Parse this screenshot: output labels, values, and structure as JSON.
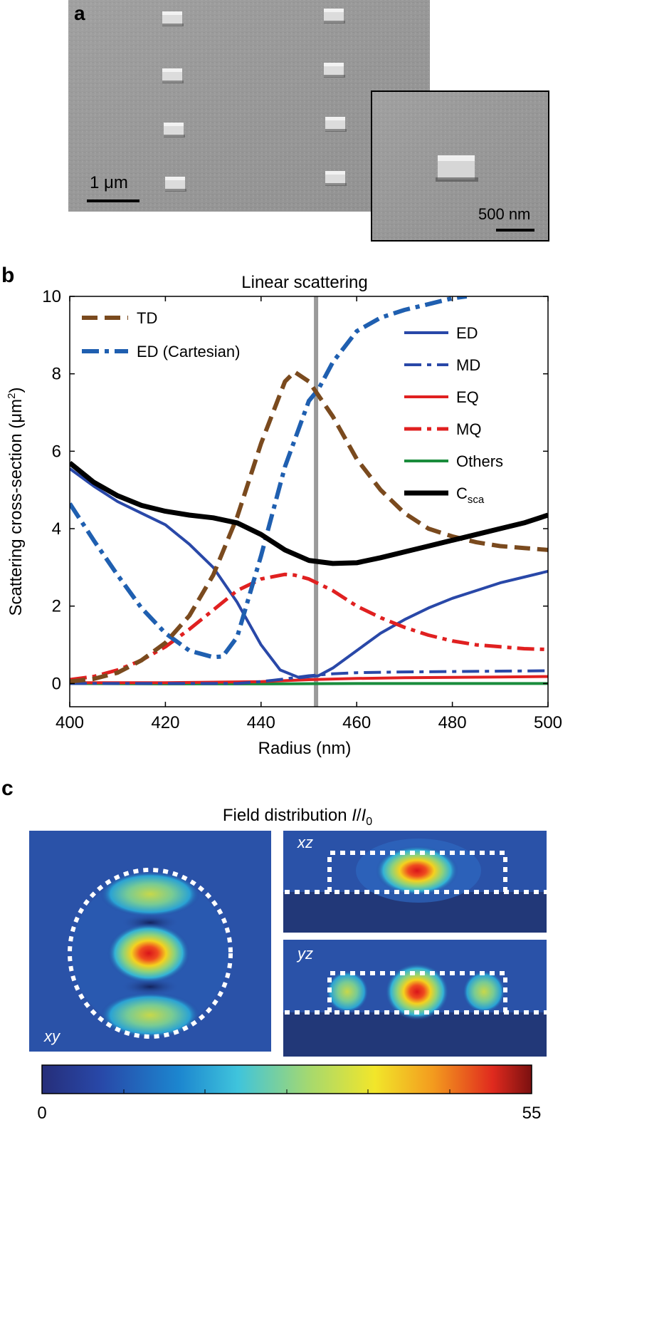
{
  "panels": {
    "a": {
      "label": "a",
      "scale_bar_main": "1 μm",
      "scale_bar_inset": "500 nm"
    },
    "b": {
      "label": "b"
    },
    "c": {
      "label": "c",
      "title_prefix": "Field distribution ",
      "title_I": "I",
      "title_slash": "/",
      "title_I0": "I",
      "title_I0_sub": "0",
      "map_labels": {
        "xy": "xy",
        "xz": "xz",
        "yz": "yz"
      },
      "colorbar": {
        "min": "0",
        "max": "55"
      }
    }
  },
  "chart_data": {
    "type": "line",
    "title": "Linear scattering",
    "xlabel": "Radius (nm)",
    "ylabel_main": "Scattering cross-section (μm",
    "ylabel_sup": "2",
    "ylabel_close": ")",
    "xlim": [
      400,
      500
    ],
    "ylim": [
      -0.6,
      10
    ],
    "xticks": [
      400,
      420,
      440,
      460,
      480,
      500
    ],
    "yticks": [
      0,
      2,
      4,
      6,
      8,
      10
    ],
    "vertical_marker_x": 451.5,
    "legend_left": [
      {
        "key": "TD",
        "label": "TD"
      },
      {
        "key": "EDC",
        "label": "ED (Cartesian)"
      }
    ],
    "legend_right": [
      {
        "key": "ED",
        "label": "ED"
      },
      {
        "key": "MD",
        "label": "MD"
      },
      {
        "key": "EQ",
        "label": "EQ"
      },
      {
        "key": "MQ",
        "label": "MQ"
      },
      {
        "key": "Others",
        "label": "Others"
      }
    ],
    "legend_csca": {
      "key": "Csca",
      "main": "C",
      "sub": "sca"
    },
    "series": [
      {
        "key": "TD",
        "name": "TD",
        "color": "#7a4a1e",
        "style": "dash",
        "width": 6,
        "x": [
          400,
          405,
          410,
          415,
          420,
          425,
          430,
          435,
          440,
          445,
          447,
          450,
          455,
          460,
          465,
          470,
          475,
          480,
          485,
          490,
          495,
          500
        ],
        "y": [
          0.05,
          0.12,
          0.28,
          0.6,
          1.05,
          1.75,
          2.8,
          4.3,
          6.2,
          7.8,
          8.05,
          7.8,
          6.9,
          5.8,
          5.0,
          4.4,
          4.0,
          3.8,
          3.65,
          3.55,
          3.5,
          3.45
        ]
      },
      {
        "key": "EDC",
        "name": "ED (Cartesian)",
        "color": "#1f5fb0",
        "style": "dashdot",
        "width": 6,
        "x": [
          400,
          405,
          410,
          415,
          420,
          425,
          430,
          432,
          435,
          440,
          445,
          450,
          452,
          455,
          460,
          465,
          470,
          475,
          480,
          483
        ],
        "y": [
          4.65,
          3.7,
          2.8,
          1.95,
          1.3,
          0.85,
          0.68,
          0.7,
          1.2,
          3.3,
          5.6,
          7.3,
          7.6,
          8.3,
          9.1,
          9.45,
          9.65,
          9.8,
          9.95,
          10.0
        ]
      },
      {
        "key": "ED",
        "name": "ED",
        "color": "#2948a8",
        "style": "solid",
        "width": 4,
        "x": [
          400,
          405,
          410,
          415,
          420,
          425,
          430,
          435,
          440,
          444,
          448,
          452,
          455,
          460,
          465,
          470,
          475,
          480,
          485,
          490,
          495,
          500
        ],
        "y": [
          5.55,
          5.1,
          4.7,
          4.4,
          4.1,
          3.6,
          3.0,
          2.1,
          1.0,
          0.35,
          0.15,
          0.2,
          0.4,
          0.85,
          1.3,
          1.65,
          1.95,
          2.2,
          2.4,
          2.6,
          2.75,
          2.9
        ]
      },
      {
        "key": "MD",
        "name": "MD",
        "color": "#2948a8",
        "style": "dashdot",
        "width": 4,
        "x": [
          400,
          420,
          435,
          440,
          445,
          450,
          455,
          460,
          470,
          480,
          490,
          500
        ],
        "y": [
          0.0,
          0.0,
          0.0,
          0.05,
          0.12,
          0.2,
          0.25,
          0.28,
          0.3,
          0.31,
          0.32,
          0.33
        ]
      },
      {
        "key": "EQ",
        "name": "EQ",
        "color": "#e02020",
        "style": "solid",
        "width": 4,
        "x": [
          400,
          420,
          440,
          450,
          460,
          470,
          480,
          490,
          500
        ],
        "y": [
          0.02,
          0.02,
          0.05,
          0.1,
          0.13,
          0.15,
          0.16,
          0.17,
          0.18
        ]
      },
      {
        "key": "MQ",
        "name": "MQ",
        "color": "#e02020",
        "style": "dashdot",
        "width": 5,
        "x": [
          400,
          405,
          410,
          415,
          420,
          425,
          430,
          435,
          440,
          445,
          447,
          450,
          455,
          460,
          465,
          470,
          475,
          480,
          485,
          490,
          495,
          500
        ],
        "y": [
          0.1,
          0.18,
          0.35,
          0.6,
          0.95,
          1.4,
          1.9,
          2.4,
          2.7,
          2.82,
          2.8,
          2.7,
          2.4,
          2.0,
          1.7,
          1.45,
          1.25,
          1.1,
          1.0,
          0.95,
          0.9,
          0.88
        ]
      },
      {
        "key": "Others",
        "name": "Others",
        "color": "#1a8c3c",
        "style": "solid",
        "width": 4,
        "x": [
          400,
          420,
          440,
          460,
          480,
          500
        ],
        "y": [
          0.0,
          -0.01,
          -0.01,
          0.0,
          0.0,
          0.0
        ]
      },
      {
        "key": "Csca",
        "name": "C_sca",
        "color": "#000000",
        "style": "solid",
        "width": 7,
        "x": [
          400,
          405,
          410,
          415,
          420,
          425,
          430,
          435,
          440,
          445,
          450,
          455,
          460,
          465,
          470,
          475,
          480,
          485,
          490,
          495,
          500
        ],
        "y": [
          5.7,
          5.2,
          4.85,
          4.6,
          4.45,
          4.35,
          4.28,
          4.15,
          3.85,
          3.45,
          3.18,
          3.1,
          3.12,
          3.25,
          3.4,
          3.55,
          3.7,
          3.85,
          4.0,
          4.15,
          4.35
        ]
      }
    ]
  }
}
